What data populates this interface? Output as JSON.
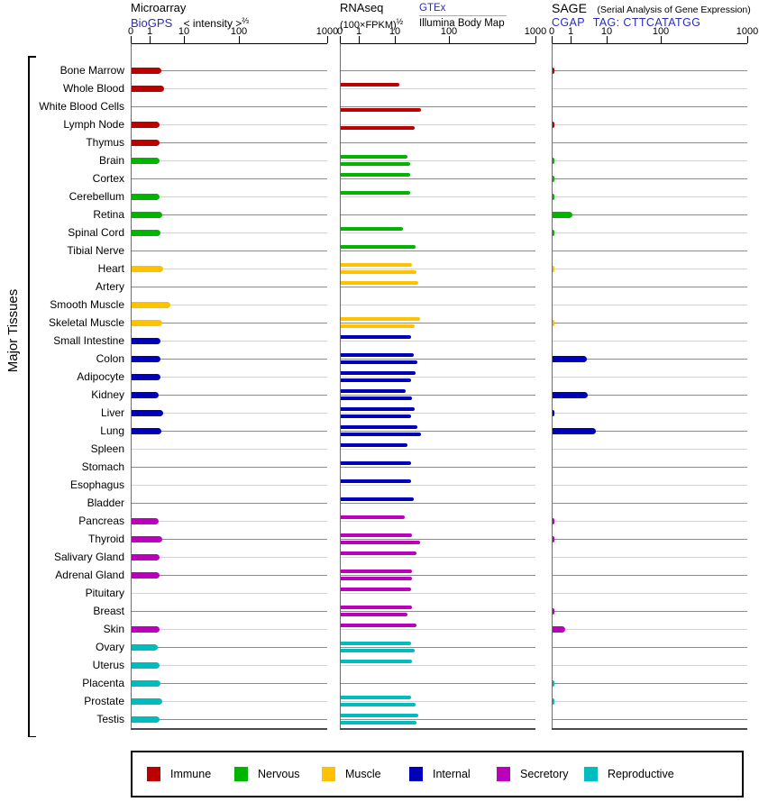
{
  "sidebar": {
    "label": "Major Tissues"
  },
  "panels": [
    {
      "id": "microarray",
      "title": "Microarray",
      "link": "BioGPS",
      "subtitle": "< intensity >",
      "subtitle_sup": "⅔",
      "axis_ticks": [
        "0",
        "1",
        "10",
        "100",
        "1000"
      ]
    },
    {
      "id": "rnaseq",
      "title": "RNAseq",
      "subtitle": "(100×FPKM)",
      "subtitle_sup": "½",
      "link": "GTEx",
      "link2": "Illumina Body Map",
      "axis_ticks": [
        "0",
        "1",
        "10",
        "100",
        "1000"
      ]
    },
    {
      "id": "sage",
      "title": "SAGE",
      "title_note": "(Serial Analysis of Gene Expression)",
      "link": "CGAP",
      "tag_text": "TAG: CTTCATATGG",
      "axis_ticks": [
        "0",
        "1",
        "10",
        "100",
        "1000"
      ]
    }
  ],
  "legend": [
    {
      "label": "Immune",
      "color": "#bb0000"
    },
    {
      "label": "Nervous",
      "color": "#00b400"
    },
    {
      "label": "Muscle",
      "color": "#ffc200"
    },
    {
      "label": "Internal",
      "color": "#0000bb"
    },
    {
      "label": "Secretory",
      "color": "#bb00bb"
    },
    {
      "label": "Reproductive",
      "color": "#00bcbc"
    }
  ],
  "colors": {
    "link_blue": "#2b2bbb",
    "row_line_dark": "#8c8c8c",
    "row_line_light": "#d2d2d2"
  },
  "chart_data": {
    "type": "bar",
    "orientation": "horizontal",
    "axis_scale": "log-like, ticks at 0 / 1 / 10 / 100 / 1000",
    "series_note": "RNAseq rows: upper thin bar = GTEx, lower thin bar = Illumina Body Map",
    "group_colors": {
      "immune": "#bb0000",
      "nervous": "#00b400",
      "muscle": "#ffc200",
      "internal": "#0000bb",
      "secretory": "#bb00bb",
      "reproductive": "#00bcbc"
    },
    "tissues": [
      {
        "name": "Bone Marrow",
        "group": "immune",
        "microarray": 2.2,
        "rnaseq_gtex": null,
        "rnaseq_illumina": null,
        "sage": 0.1
      },
      {
        "name": "Whole Blood",
        "group": "immune",
        "microarray": 2.6,
        "rnaseq_gtex": 12,
        "rnaseq_illumina": null,
        "sage": null
      },
      {
        "name": "White Blood Cells",
        "group": "immune",
        "microarray": null,
        "rnaseq_gtex": null,
        "rnaseq_illumina": 30,
        "sage": null
      },
      {
        "name": "Lymph Node",
        "group": "immune",
        "microarray": 1.9,
        "rnaseq_gtex": null,
        "rnaseq_illumina": 23,
        "sage": 0.1
      },
      {
        "name": "Thymus",
        "group": "immune",
        "microarray": 1.9,
        "rnaseq_gtex": null,
        "rnaseq_illumina": null,
        "sage": null
      },
      {
        "name": "Brain",
        "group": "nervous",
        "microarray": 1.9,
        "rnaseq_gtex": 17,
        "rnaseq_illumina": 19,
        "sage": 0.1
      },
      {
        "name": "Cortex",
        "group": "nervous",
        "microarray": null,
        "rnaseq_gtex": 19,
        "rnaseq_illumina": null,
        "sage": 0.1
      },
      {
        "name": "Cerebellum",
        "group": "nervous",
        "microarray": 1.9,
        "rnaseq_gtex": 19,
        "rnaseq_illumina": null,
        "sage": 0.1
      },
      {
        "name": "Retina",
        "group": "nervous",
        "microarray": 2.4,
        "rnaseq_gtex": null,
        "rnaseq_illumina": null,
        "sage": 1.1
      },
      {
        "name": "Spinal Cord",
        "group": "nervous",
        "microarray": 2.1,
        "rnaseq_gtex": 14,
        "rnaseq_illumina": null,
        "sage": 0.1
      },
      {
        "name": "Tibial Nerve",
        "group": "nervous",
        "microarray": null,
        "rnaseq_gtex": 24,
        "rnaseq_illumina": null,
        "sage": null
      },
      {
        "name": "Heart",
        "group": "muscle",
        "microarray": 2.5,
        "rnaseq_gtex": 21,
        "rnaseq_illumina": 25,
        "sage": 0.1
      },
      {
        "name": "Artery",
        "group": "muscle",
        "microarray": null,
        "rnaseq_gtex": 27,
        "rnaseq_illumina": null,
        "sage": null
      },
      {
        "name": "Smooth Muscle",
        "group": "muscle",
        "microarray": 4.1,
        "rnaseq_gtex": null,
        "rnaseq_illumina": null,
        "sage": null
      },
      {
        "name": "Skeletal Muscle",
        "group": "muscle",
        "microarray": 2.3,
        "rnaseq_gtex": 29,
        "rnaseq_illumina": 23,
        "sage": 0.1
      },
      {
        "name": "Small Intestine",
        "group": "internal",
        "microarray": 2.1,
        "rnaseq_gtex": 20,
        "rnaseq_illumina": null,
        "sage": null
      },
      {
        "name": "Colon",
        "group": "internal",
        "microarray": 2.1,
        "rnaseq_gtex": 22,
        "rnaseq_illumina": 26,
        "sage": 2.8
      },
      {
        "name": "Adipocyte",
        "group": "internal",
        "microarray": 2.1,
        "rnaseq_gtex": 24,
        "rnaseq_illumina": 20,
        "sage": null
      },
      {
        "name": "Kidney",
        "group": "internal",
        "microarray": 1.8,
        "rnaseq_gtex": 16,
        "rnaseq_illumina": 21,
        "sage": 3
      },
      {
        "name": "Liver",
        "group": "internal",
        "microarray": 2.5,
        "rnaseq_gtex": 23,
        "rnaseq_illumina": 20,
        "sage": 0.1
      },
      {
        "name": "Lung",
        "group": "internal",
        "microarray": 2.2,
        "rnaseq_gtex": 26,
        "rnaseq_illumina": 31,
        "sage": 5
      },
      {
        "name": "Spleen",
        "group": "internal",
        "microarray": null,
        "rnaseq_gtex": 17,
        "rnaseq_illumina": null,
        "sage": null
      },
      {
        "name": "Stomach",
        "group": "internal",
        "microarray": null,
        "rnaseq_gtex": 20,
        "rnaseq_illumina": null,
        "sage": null
      },
      {
        "name": "Esophagus",
        "group": "internal",
        "microarray": null,
        "rnaseq_gtex": 20,
        "rnaseq_illumina": null,
        "sage": null
      },
      {
        "name": "Bladder",
        "group": "internal",
        "microarray": null,
        "rnaseq_gtex": 22,
        "rnaseq_illumina": null,
        "sage": null
      },
      {
        "name": "Pancreas",
        "group": "secretory",
        "microarray": 1.8,
        "rnaseq_gtex": 15,
        "rnaseq_illumina": null,
        "sage": 0.1
      },
      {
        "name": "Thyroid",
        "group": "secretory",
        "microarray": 2.4,
        "rnaseq_gtex": 21,
        "rnaseq_illumina": 29,
        "sage": 0.1
      },
      {
        "name": "Salivary Gland",
        "group": "secretory",
        "microarray": 1.9,
        "rnaseq_gtex": 25,
        "rnaseq_illumina": null,
        "sage": null
      },
      {
        "name": "Adrenal Gland",
        "group": "secretory",
        "microarray": 1.9,
        "rnaseq_gtex": 21,
        "rnaseq_illumina": 21,
        "sage": null
      },
      {
        "name": "Pituitary",
        "group": "secretory",
        "microarray": null,
        "rnaseq_gtex": 20,
        "rnaseq_illumina": null,
        "sage": null
      },
      {
        "name": "Breast",
        "group": "secretory",
        "microarray": null,
        "rnaseq_gtex": 21,
        "rnaseq_illumina": 17,
        "sage": 0.1
      },
      {
        "name": "Skin",
        "group": "secretory",
        "microarray": 1.9,
        "rnaseq_gtex": 25,
        "rnaseq_illumina": null,
        "sage": 0.7
      },
      {
        "name": "Ovary",
        "group": "reproductive",
        "microarray": 1.7,
        "rnaseq_gtex": 20,
        "rnaseq_illumina": 23,
        "sage": null
      },
      {
        "name": "Uterus",
        "group": "reproductive",
        "microarray": 1.9,
        "rnaseq_gtex": 21,
        "rnaseq_illumina": null,
        "sage": null
      },
      {
        "name": "Placenta",
        "group": "reproductive",
        "microarray": 2.1,
        "rnaseq_gtex": null,
        "rnaseq_illumina": null,
        "sage": 0.1
      },
      {
        "name": "Prostate",
        "group": "reproductive",
        "microarray": 2.3,
        "rnaseq_gtex": 20,
        "rnaseq_illumina": 24,
        "sage": 0.1
      },
      {
        "name": "Testis",
        "group": "reproductive",
        "microarray": 1.9,
        "rnaseq_gtex": 27,
        "rnaseq_illumina": 25,
        "sage": null
      }
    ]
  }
}
